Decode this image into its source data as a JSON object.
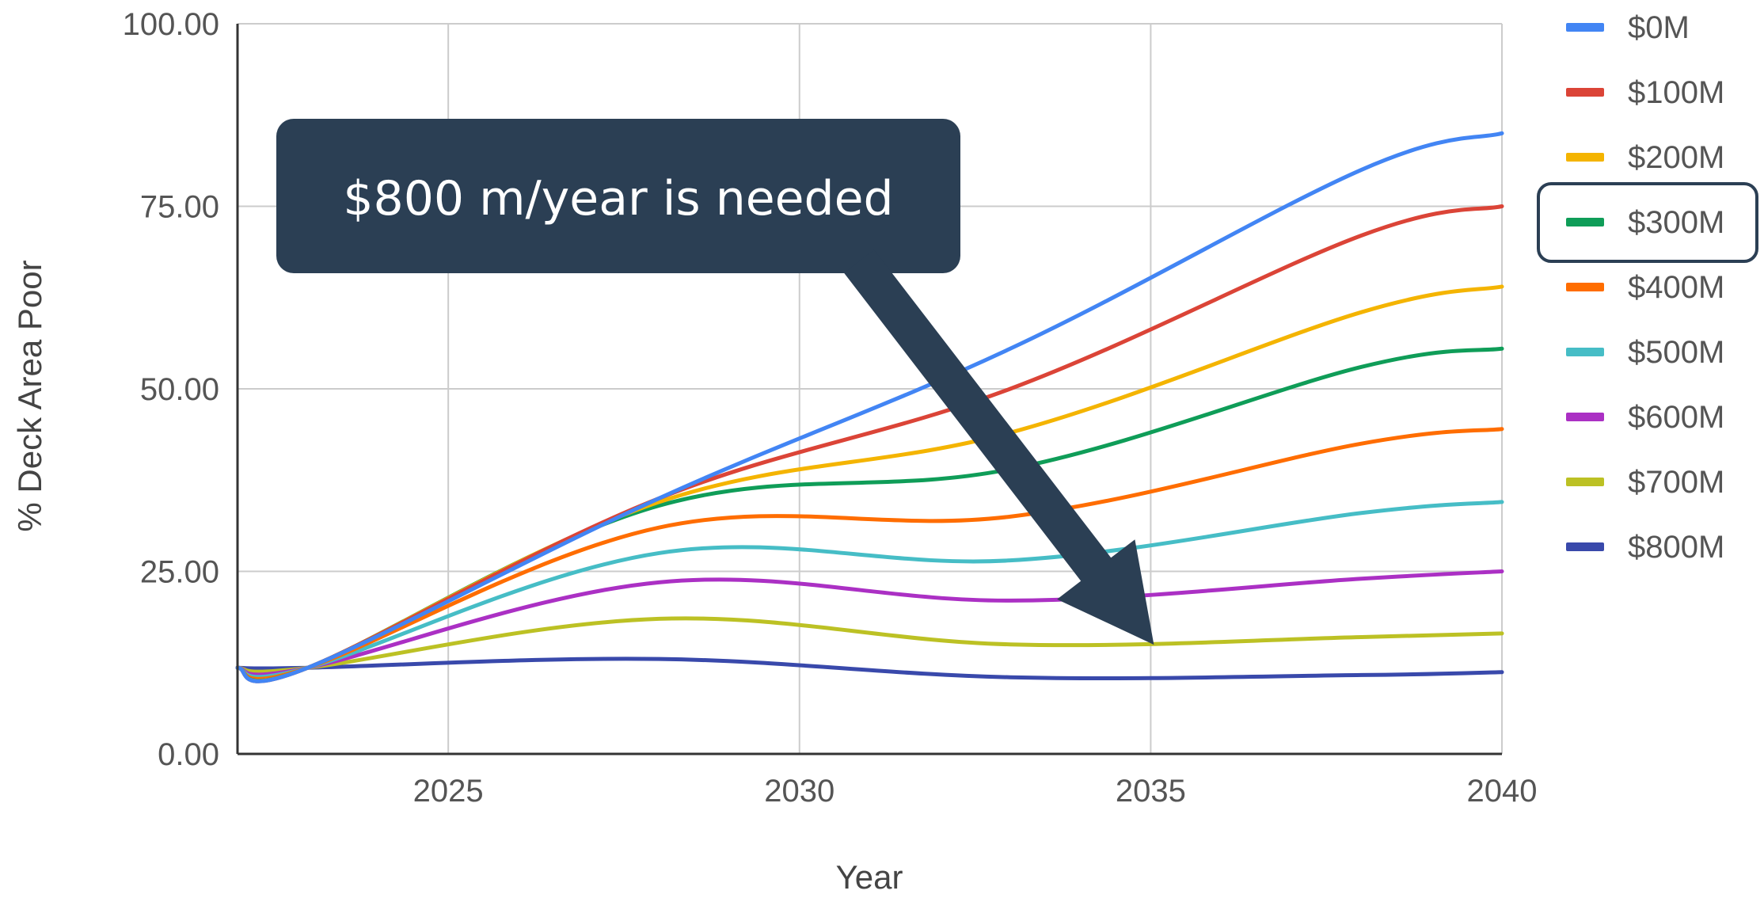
{
  "chart_data": {
    "type": "line",
    "xlabel": "Year",
    "ylabel": "% Deck Area Poor",
    "xlim": [
      2022,
      2040
    ],
    "ylim": [
      0,
      100
    ],
    "x_ticks": [
      "2025",
      "2030",
      "2035",
      "2040"
    ],
    "y_ticks": [
      "0.00",
      "25.00",
      "50.00",
      "75.00",
      "100.00"
    ],
    "grid": true,
    "legend_position": "right",
    "x": [
      2022,
      2023,
      2028,
      2033,
      2038,
      2040
    ],
    "series": [
      {
        "name": "$0M",
        "color": "#4285f4",
        "values": [
          11.8,
          11.8,
          35.0,
          55.5,
          80.0,
          85.0
        ]
      },
      {
        "name": "$100M",
        "color": "#db4437",
        "values": [
          11.8,
          11.8,
          35.0,
          50.0,
          71.0,
          75.0
        ]
      },
      {
        "name": "$200M",
        "color": "#f4b400",
        "values": [
          11.8,
          11.8,
          34.5,
          44.0,
          60.5,
          64.0
        ]
      },
      {
        "name": "$300M",
        "color": "#0f9d58",
        "values": [
          11.8,
          11.8,
          34.0,
          39.0,
          53.0,
          55.5
        ]
      },
      {
        "name": "$400M",
        "color": "#ff6d00",
        "values": [
          11.8,
          11.8,
          31.0,
          32.5,
          42.5,
          44.5
        ]
      },
      {
        "name": "$500M",
        "color": "#46bdc6",
        "values": [
          11.8,
          11.8,
          27.5,
          26.5,
          33.0,
          34.5
        ]
      },
      {
        "name": "$600M",
        "color": "#ab30c4",
        "values": [
          11.8,
          11.8,
          23.5,
          21.0,
          24.0,
          25.0
        ]
      },
      {
        "name": "$700M",
        "color": "#bcc124",
        "values": [
          11.8,
          11.8,
          18.5,
          15.0,
          16.0,
          16.5
        ]
      },
      {
        "name": "$800M",
        "color": "#3949ab",
        "values": [
          11.8,
          11.8,
          13.0,
          10.5,
          10.8,
          11.2
        ]
      }
    ],
    "highlighted_legend_entry": "$300M",
    "callout": {
      "text": "$800 m/year is needed",
      "points_to_year": 2035,
      "points_to_value": 15.5,
      "color": "#2b3f54"
    }
  }
}
